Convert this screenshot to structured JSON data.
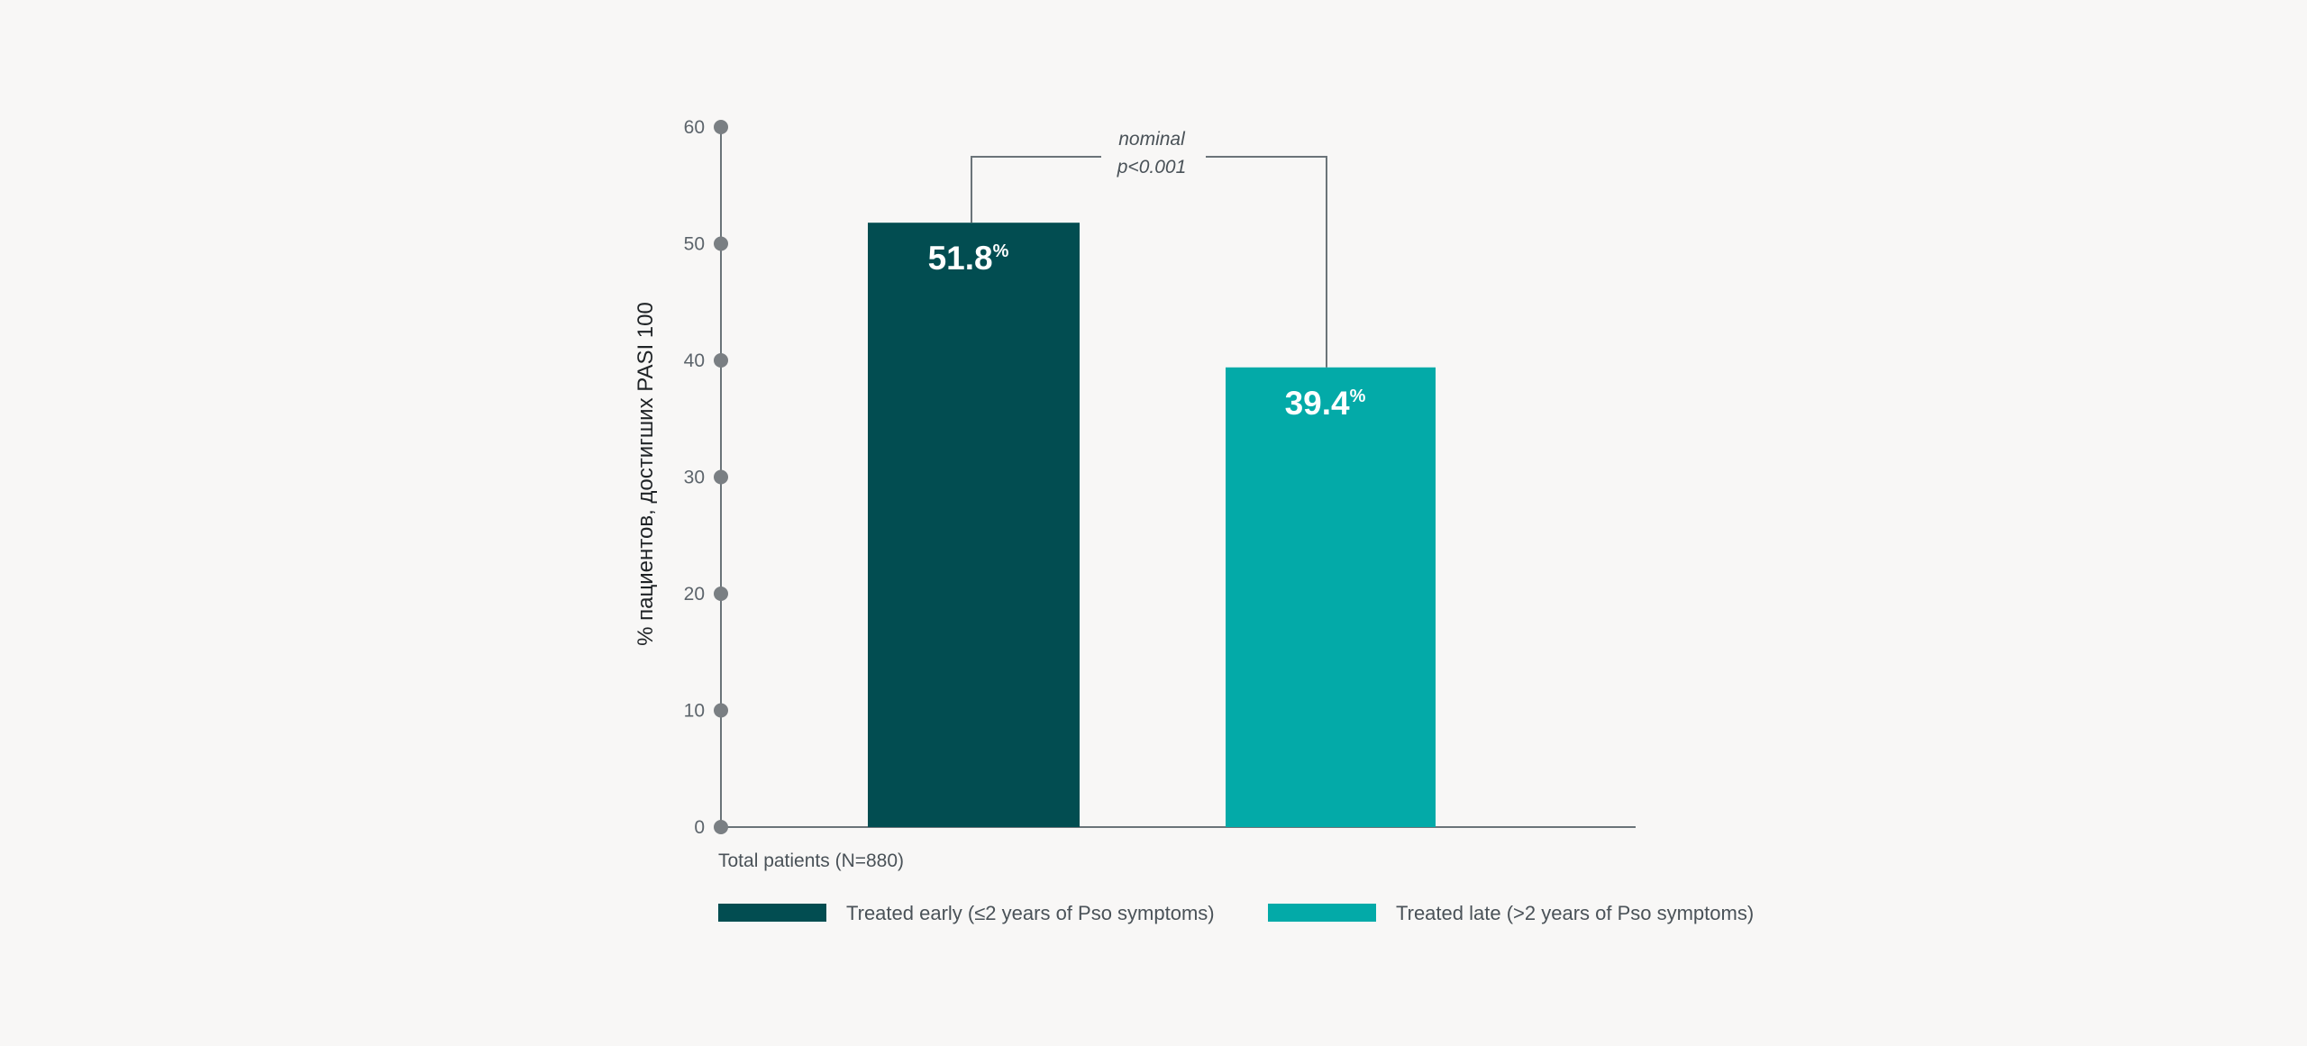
{
  "chart_data": {
    "type": "bar",
    "ylabel": "% пациентов, достигших PASI 100",
    "ylim": [
      0,
      60
    ],
    "yticks": [
      0,
      10,
      20,
      30,
      40,
      50,
      60
    ],
    "grid": false,
    "legend_position": "bottom",
    "group_label": "Total patients (N=880)",
    "series": [
      {
        "name": "Treated early (≤2 years of Pso symptoms)",
        "value": 51.8,
        "label": "51.8",
        "unit": "%",
        "color": "#024d51"
      },
      {
        "name": "Treated late (>2 years of Pso symptoms)",
        "value": 39.4,
        "label": "39.4",
        "unit": "%",
        "color": "#03aaa8"
      }
    ],
    "annotation": {
      "lines": [
        "nominal",
        "p<0.001"
      ]
    }
  },
  "colors": {
    "background": "#f8f7f6",
    "axis": "#6b7479",
    "tick_marker": "#7a7f83",
    "text": "#4a5258"
  }
}
